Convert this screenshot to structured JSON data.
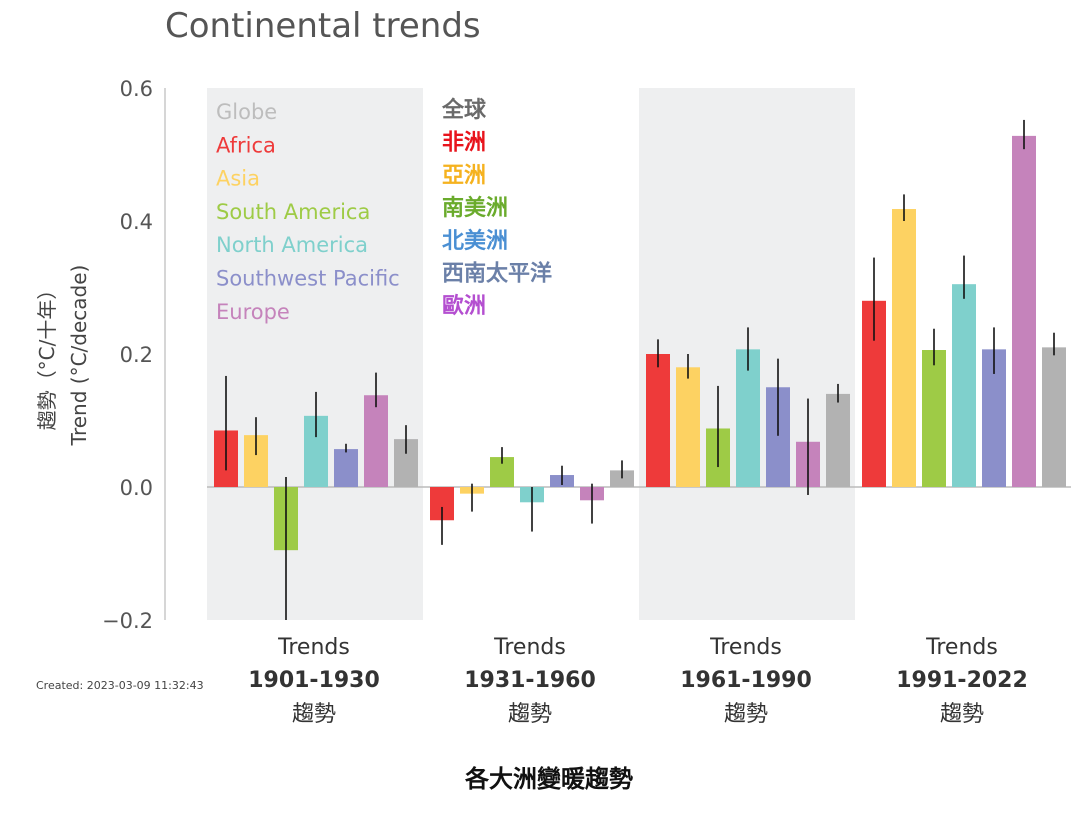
{
  "chart_data": {
    "type": "bar",
    "title": "Continental trends",
    "ylabel_zh": "趨勢（°C/十年）",
    "ylabel": "Trend (°C/decade)",
    "ylim": [
      -0.2,
      0.6
    ],
    "yticks": [
      {
        "value": 0.6,
        "label": "0.6"
      },
      {
        "value": 0.4,
        "label": "0.4"
      },
      {
        "value": 0.2,
        "label": "0.2"
      },
      {
        "value": 0.0,
        "label": "0.0"
      },
      {
        "value": -0.2,
        "label": "−0.2"
      }
    ],
    "groups": [
      {
        "line1": "Trends",
        "line2": "1901-1930",
        "line3": "趨勢",
        "shaded": true
      },
      {
        "line1": "Trends",
        "line2": "1931-1960",
        "line3": "趨勢",
        "shaded": false
      },
      {
        "line1": "Trends",
        "line2": "1961-1990",
        "line3": "趨勢",
        "shaded": true
      },
      {
        "line1": "Trends",
        "line2": "1991-2022",
        "line3": "趨勢",
        "shaded": false
      }
    ],
    "series": [
      {
        "name": "Africa",
        "name_zh": "非洲",
        "color": "#ee3a3a",
        "zh_color": "#e8141c",
        "values": [
          0.085,
          -0.05,
          0.2,
          0.28
        ],
        "err_low": [
          0.025,
          -0.087,
          0.18,
          0.22
        ],
        "err_high": [
          0.167,
          -0.03,
          0.222,
          0.345
        ]
      },
      {
        "name": "Asia",
        "name_zh": "亞洲",
        "color": "#fdd262",
        "zh_color": "#f5b21f",
        "values": [
          0.078,
          -0.01,
          0.18,
          0.418
        ],
        "err_low": [
          0.048,
          -0.037,
          0.163,
          0.4
        ],
        "err_high": [
          0.105,
          0.005,
          0.2,
          0.44
        ]
      },
      {
        "name": "South America",
        "name_zh": "南美洲",
        "color": "#9ecb46",
        "zh_color": "#6aab2c",
        "values": [
          -0.095,
          0.045,
          0.088,
          0.206
        ],
        "err_low": [
          -0.2,
          0.035,
          0.03,
          0.183
        ],
        "err_high": [
          0.015,
          0.06,
          0.152,
          0.238
        ]
      },
      {
        "name": "North America",
        "name_zh": "北美洲",
        "color": "#7fd0cc",
        "zh_color": "#4a8fd3",
        "values": [
          0.107,
          -0.023,
          0.207,
          0.305
        ],
        "err_low": [
          0.075,
          -0.067,
          0.175,
          0.283
        ],
        "err_high": [
          0.143,
          0.0,
          0.24,
          0.348
        ]
      },
      {
        "name": "Southwest Pacific",
        "name_zh": "西南太平洋",
        "color": "#8b8fca",
        "zh_color": "#6b80a8",
        "values": [
          0.057,
          0.018,
          0.15,
          0.207
        ],
        "err_low": [
          0.052,
          0.003,
          0.077,
          0.17
        ],
        "err_high": [
          0.065,
          0.032,
          0.193,
          0.24
        ]
      },
      {
        "name": "Europe",
        "name_zh": "歐洲",
        "color": "#c583bb",
        "zh_color": "#b44fd0",
        "values": [
          0.138,
          -0.02,
          0.068,
          0.528
        ],
        "err_low": [
          0.12,
          -0.055,
          -0.012,
          0.508
        ],
        "err_high": [
          0.172,
          0.005,
          0.133,
          0.552
        ]
      },
      {
        "name": "Globe",
        "name_zh": "全球",
        "color": "#b2b2b2",
        "zh_color": "#6a6a6a",
        "values": [
          0.072,
          0.025,
          0.14,
          0.21
        ],
        "err_low": [
          0.05,
          0.013,
          0.127,
          0.198
        ],
        "err_high": [
          0.093,
          0.04,
          0.155,
          0.232
        ]
      }
    ],
    "legend_order": [
      6,
      0,
      1,
      2,
      3,
      4,
      5
    ],
    "legend_label_colors": [
      "#bdbdbd",
      "#ee3a3a",
      "#fdd262",
      "#9ecb46",
      "#7fd0cc",
      "#8b8fca",
      "#c583bb"
    ],
    "legend_placement": "top-left",
    "grid": false
  },
  "footer": {
    "created": "Created: 2023-03-09 11:32:43",
    "caption": "各大洲變暖趨勢"
  }
}
